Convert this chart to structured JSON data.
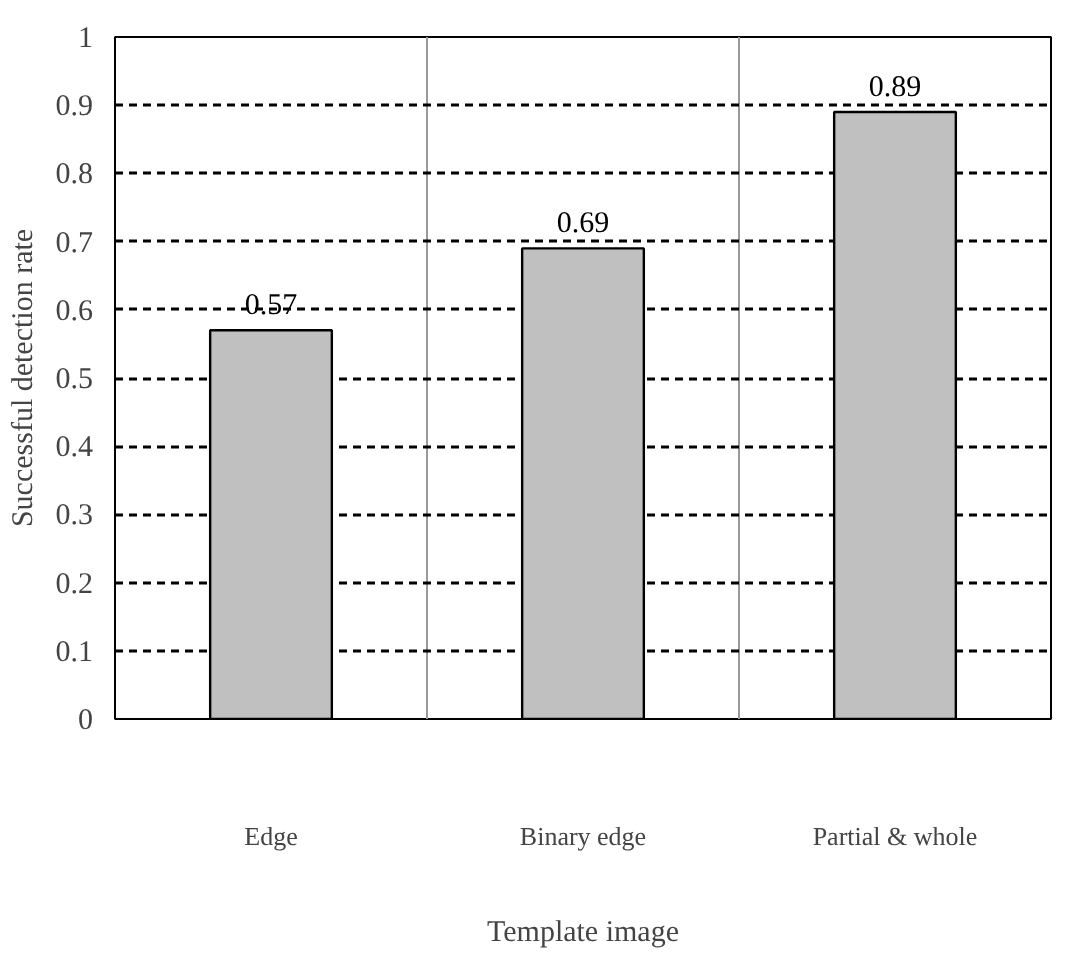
{
  "chart_data": {
    "type": "bar",
    "xlabel": "Template image",
    "ylabel": "Successful detection rate",
    "categories": [
      "Edge",
      "Binary edge",
      "Partial & whole"
    ],
    "values": [
      0.57,
      0.69,
      0.89
    ],
    "color": "#c0c0c0",
    "ylim": [
      0,
      1
    ],
    "yticks": [
      0,
      0.1,
      0.2,
      0.3,
      0.4,
      0.5,
      0.6,
      0.7,
      0.8,
      0.9,
      1
    ],
    "grid": true,
    "data_labels": true
  }
}
